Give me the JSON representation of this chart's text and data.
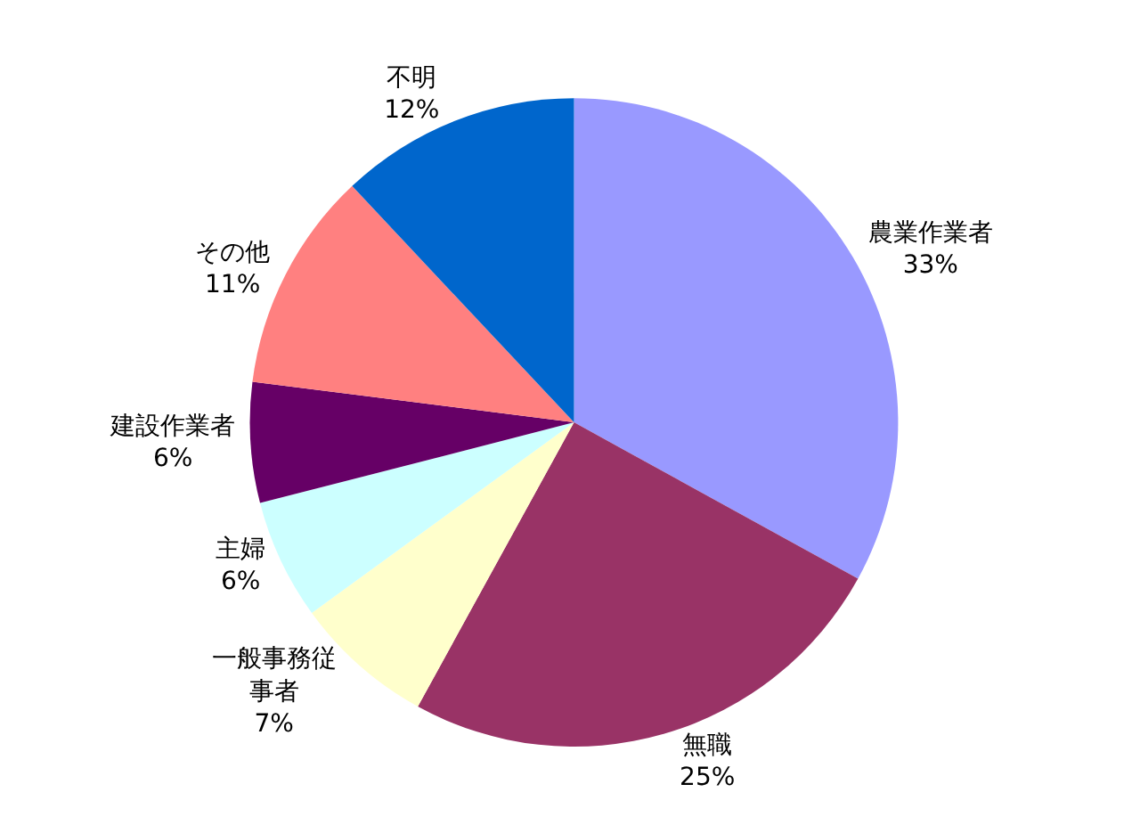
{
  "chart_data": {
    "type": "pie",
    "categories": [
      "農業作業者",
      "無職",
      "一般事務従事者",
      "主婦",
      "建設作業者",
      "その他",
      "不明"
    ],
    "values": [
      33,
      25,
      7,
      6,
      6,
      11,
      12
    ],
    "value_labels": [
      "33%",
      "25%",
      "7%",
      "6%",
      "6%",
      "11%",
      "12%"
    ],
    "colors": [
      "#9999ff",
      "#993366",
      "#ffffcc",
      "#ccffff",
      "#660066",
      "#ff8080",
      "#0066cc"
    ],
    "legend": false
  }
}
